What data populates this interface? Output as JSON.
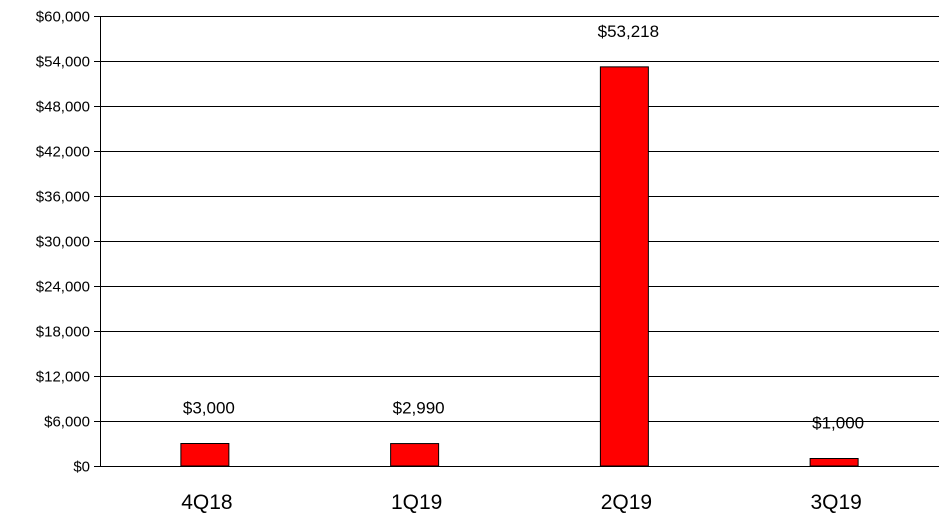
{
  "chart_data": {
    "type": "bar",
    "title": "",
    "xlabel": "",
    "ylabel": "",
    "categories": [
      "4Q18",
      "1Q19",
      "2Q19",
      "3Q19"
    ],
    "values": [
      3000,
      2990,
      53218,
      1000
    ],
    "data_labels": [
      "$3,000",
      "$2,990",
      "$53,218",
      "$1,000"
    ],
    "ylim": [
      0,
      60000
    ],
    "y_ticks": [
      0,
      6000,
      12000,
      18000,
      24000,
      30000,
      36000,
      42000,
      48000,
      54000,
      60000
    ],
    "y_tick_labels": [
      "$0",
      "$6,000",
      "$12,000",
      "$18,000",
      "$24,000",
      "$30,000",
      "$36,000",
      "$42,000",
      "$48,000",
      "$54,000",
      "$60,000"
    ],
    "grid": "horizontal",
    "legend": "none",
    "bar_color": "#ff0000",
    "bar_edge_color": "#000000"
  }
}
